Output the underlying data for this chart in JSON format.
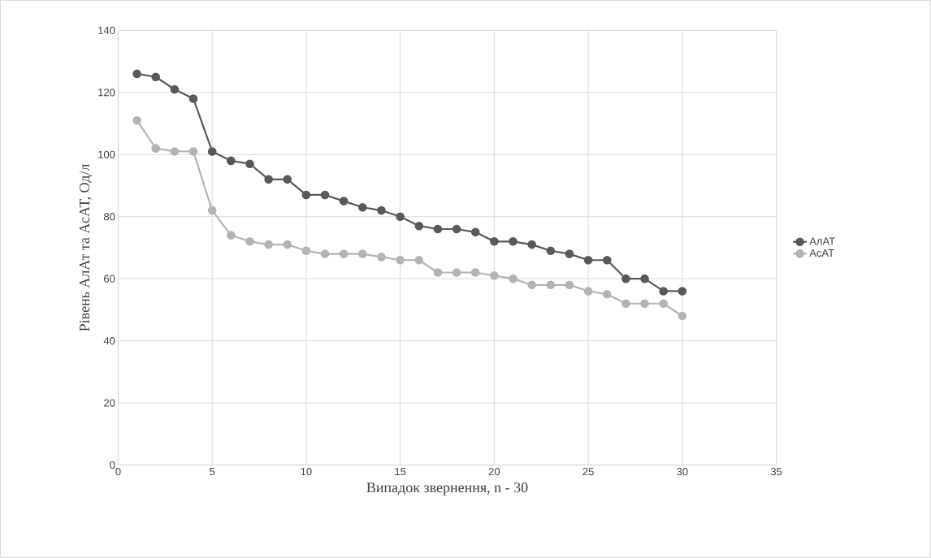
{
  "chart_data": {
    "type": "line",
    "xlabel": "Випадок звернення, n - 30",
    "ylabel": "Рівень АлАт та АсАТ, Од/л",
    "x": [
      1,
      2,
      3,
      4,
      5,
      6,
      7,
      8,
      9,
      10,
      11,
      12,
      13,
      14,
      15,
      16,
      17,
      18,
      19,
      20,
      21,
      22,
      23,
      24,
      25,
      26,
      27,
      28,
      29,
      30
    ],
    "series": [
      {
        "name": "АлАТ",
        "color": "#595959",
        "values": [
          126,
          125,
          121,
          118,
          101,
          98,
          97,
          92,
          92,
          87,
          87,
          85,
          83,
          82,
          80,
          77,
          76,
          76,
          75,
          72,
          72,
          71,
          69,
          68,
          66,
          66,
          60,
          60,
          56,
          56
        ]
      },
      {
        "name": "АсАТ",
        "color": "#b4b4b4",
        "values": [
          111,
          102,
          101,
          101,
          82,
          74,
          72,
          71,
          71,
          69,
          68,
          68,
          68,
          67,
          66,
          66,
          62,
          62,
          62,
          61,
          60,
          58,
          58,
          58,
          56,
          55,
          52,
          52,
          52,
          48
        ]
      }
    ],
    "xlim": [
      0,
      35
    ],
    "xticks": [
      0,
      5,
      10,
      15,
      20,
      25,
      30,
      35
    ],
    "ylim": [
      0,
      140
    ],
    "yticks": [
      0,
      20,
      40,
      60,
      80,
      100,
      120,
      140
    ],
    "grid": true,
    "legend": "right",
    "marker": "circle",
    "line_style": "solid"
  }
}
